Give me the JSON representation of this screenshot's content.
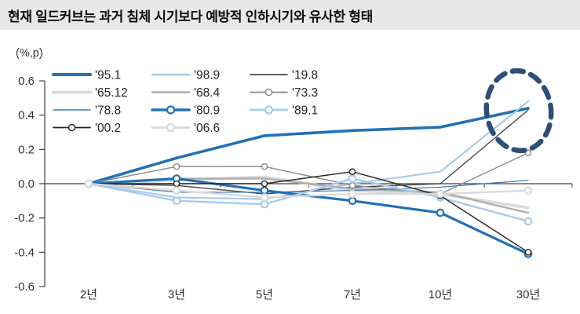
{
  "title": "현재 일드커브는 과거 침체 시기보다 예방적 인하시기와 유사한 형태",
  "chart_data": {
    "type": "line",
    "title": "현재 일드커브는 과거 침체 시기보다 예방적 인하시기와 유사한 형태",
    "unit_label": "(%,p)",
    "categories": [
      "2년",
      "3년",
      "5년",
      "7년",
      "10년",
      "30년"
    ],
    "y_ticks": [
      "0.6",
      "0.4",
      "0.2",
      "0.0",
      "-0.2",
      "-0.4",
      "-0.6"
    ],
    "ylim": [
      -0.6,
      0.6
    ],
    "grid": false,
    "legend_position": "top-left",
    "series": [
      {
        "name": "'95.1",
        "color": "#2171B5",
        "width": 3.6,
        "marker": false,
        "values": [
          0,
          0.15,
          0.28,
          0.31,
          0.33,
          0.44
        ]
      },
      {
        "name": "'98.9",
        "color": "#A8CBE9",
        "width": 2.2,
        "marker": false,
        "values": [
          0,
          -0.08,
          -0.09,
          0.0,
          0.07,
          0.48
        ]
      },
      {
        "name": "'19.8",
        "color": "#474747",
        "width": 1.4,
        "marker": false,
        "values": [
          0,
          -0.01,
          -0.06,
          -0.02,
          0.0,
          0.43
        ]
      },
      {
        "name": "'65.12",
        "color": "#DADADA",
        "width": 3.6,
        "marker": false,
        "values": [
          0,
          0.02,
          0.04,
          -0.04,
          -0.06,
          -0.14
        ]
      },
      {
        "name": "'68.4",
        "color": "#ACACAC",
        "width": 2.2,
        "marker": false,
        "values": [
          0,
          0.03,
          0.03,
          -0.03,
          -0.05,
          -0.17
        ]
      },
      {
        "name": "'73.3",
        "color": "#8A8A8A",
        "width": 1.4,
        "marker": true,
        "values": [
          0,
          0.1,
          0.1,
          -0.01,
          -0.06,
          0.18
        ]
      },
      {
        "name": "'78.8",
        "color": "#3D7AB8",
        "width": 1.2,
        "marker": false,
        "values": [
          0,
          -0.05,
          -0.05,
          -0.04,
          -0.02,
          0.02
        ]
      },
      {
        "name": "'80.9",
        "color": "#2171B5",
        "width": 3.2,
        "marker": true,
        "values": [
          0,
          0.03,
          -0.04,
          -0.1,
          -0.17,
          -0.41
        ]
      },
      {
        "name": "'89.1",
        "color": "#A8CBE9",
        "width": 2.4,
        "marker": true,
        "values": [
          0,
          -0.1,
          -0.12,
          0.03,
          -0.08,
          -0.22
        ]
      },
      {
        "name": "'00.2",
        "color": "#262626",
        "width": 1.4,
        "marker": true,
        "values": [
          0,
          0.0,
          0.0,
          0.07,
          -0.07,
          -0.4
        ]
      },
      {
        "name": "'06.6",
        "color": "#DADADA",
        "width": 2.4,
        "marker": true,
        "values": [
          0,
          -0.04,
          -0.08,
          -0.06,
          -0.06,
          -0.04
        ]
      }
    ],
    "annotation": {
      "type": "dashed-ellipse",
      "color": "#2D4E79",
      "highlights": "30년 장기구간의 '95.1 · '98.9 · '19.8 수렴 지점"
    },
    "axis_color": "#404040",
    "label_color": "#333333"
  }
}
